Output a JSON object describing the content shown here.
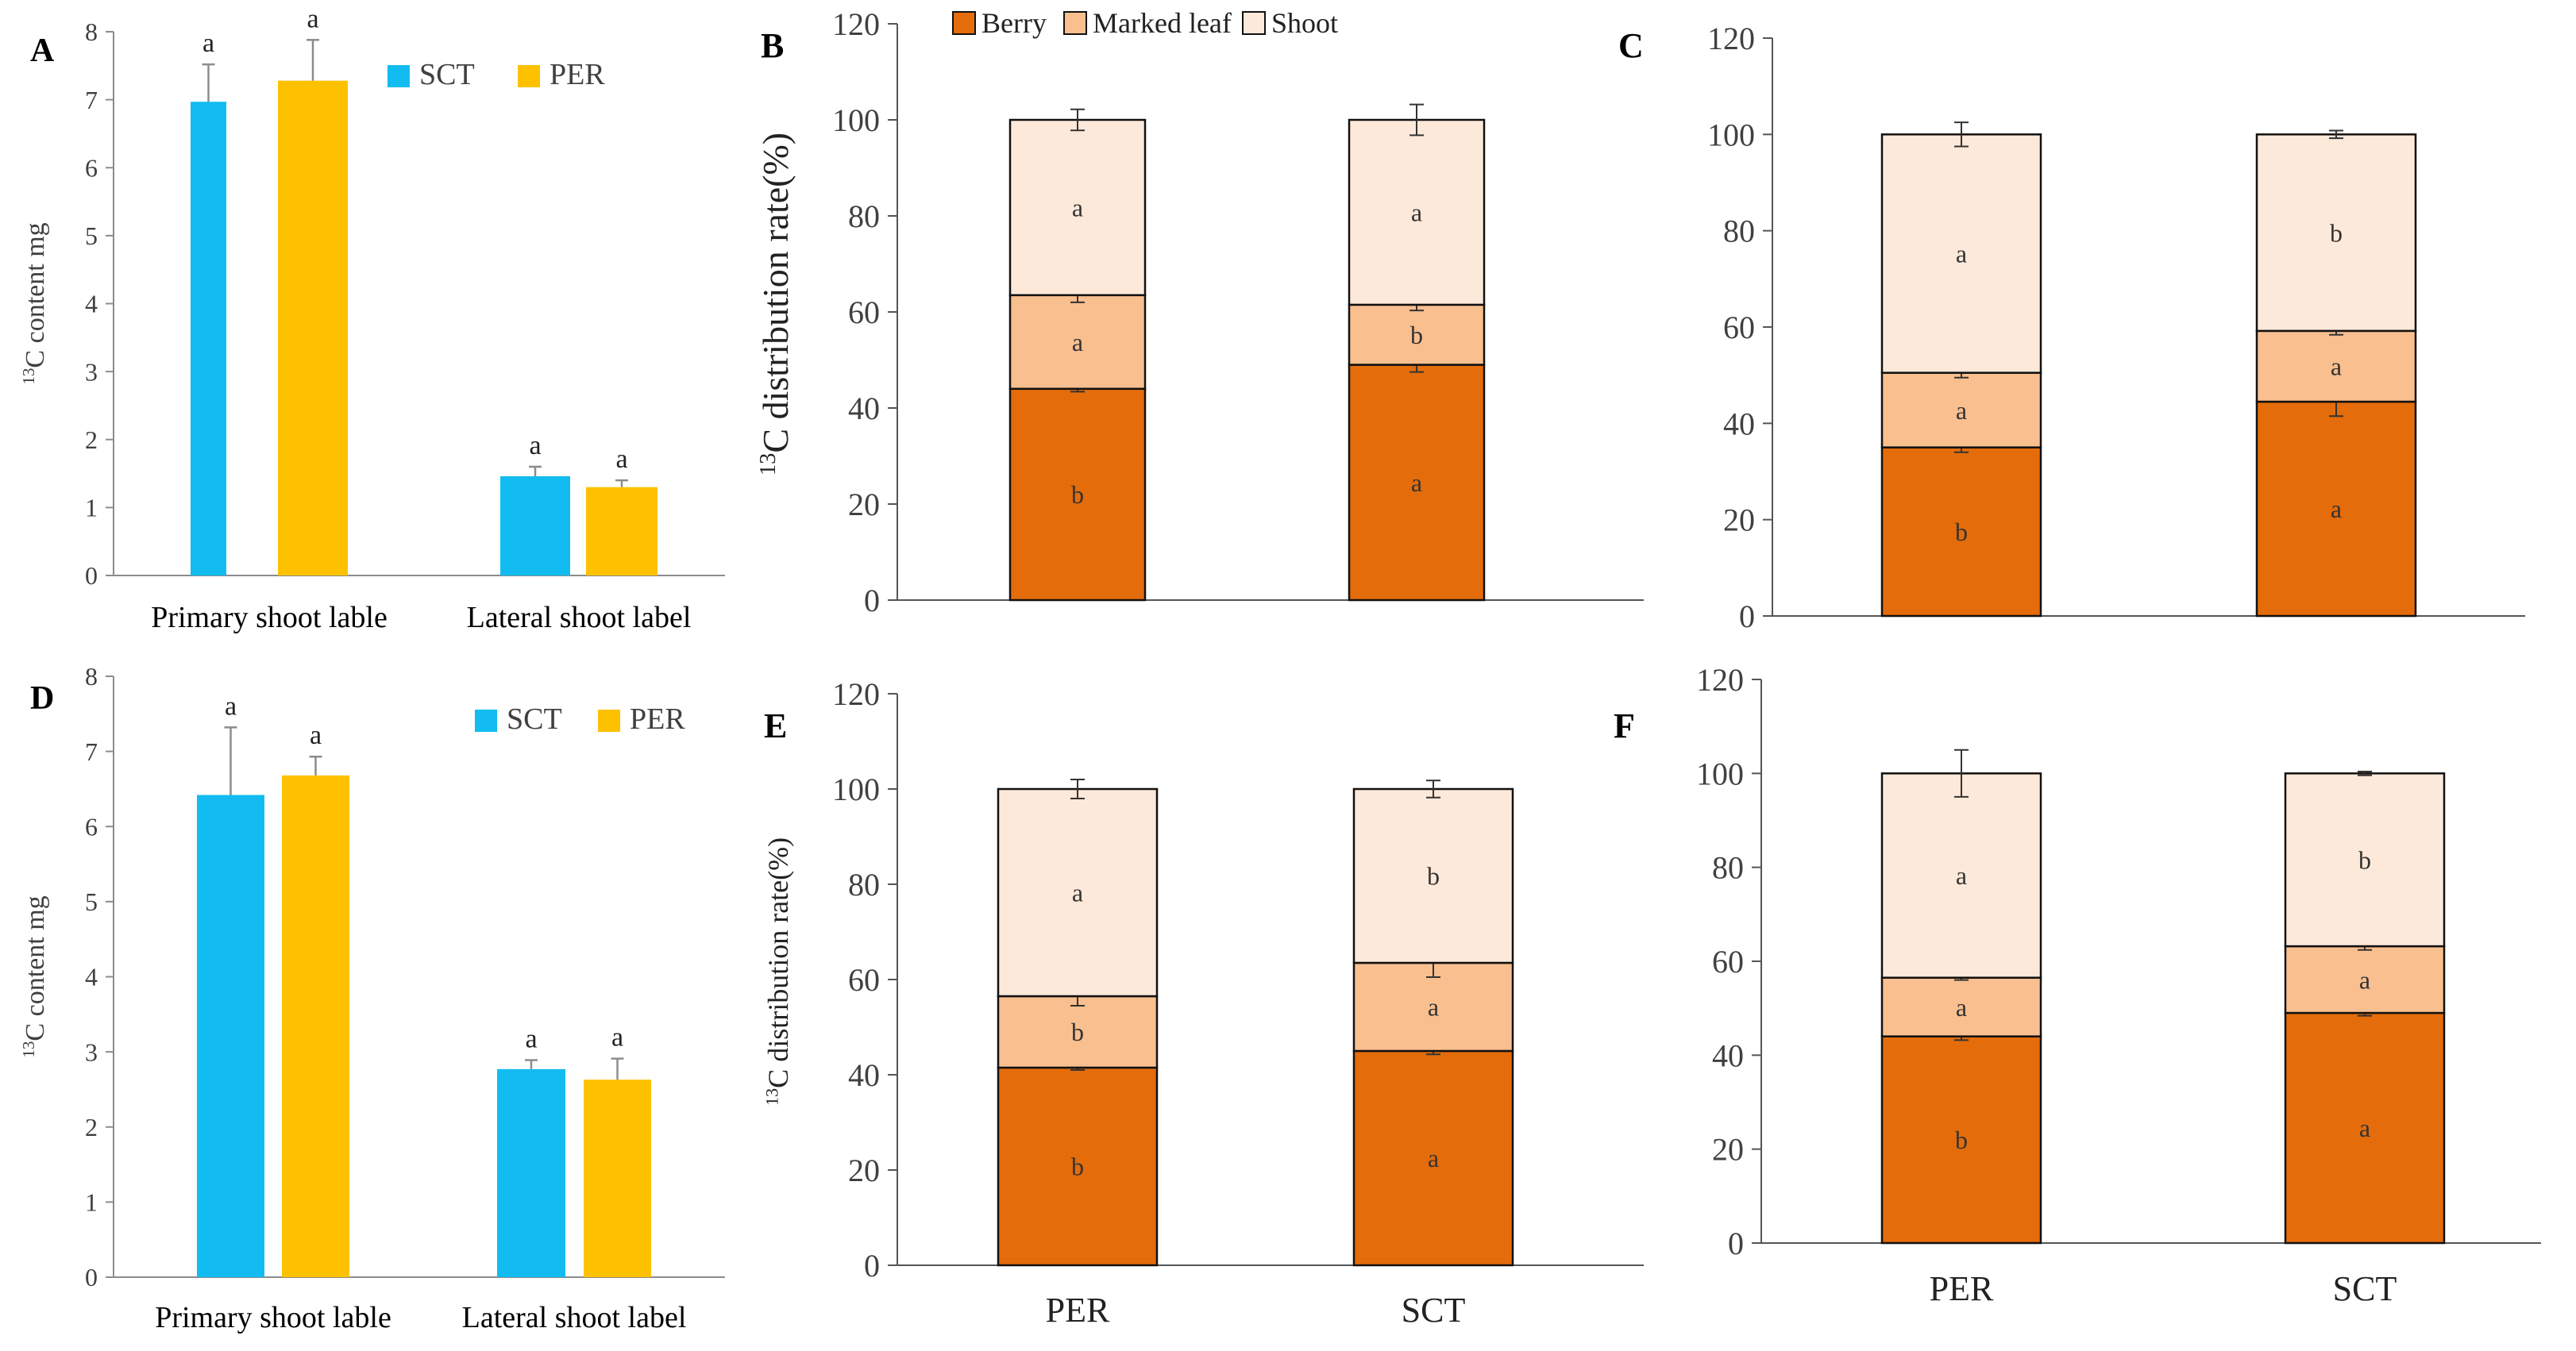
{
  "chart_data": [
    {
      "id": "A",
      "panel_label": "A",
      "type": "bar",
      "ylabel_sup": "13",
      "ylabel_rest": "C content mg",
      "ylim": [
        0,
        8
      ],
      "yticks": [
        "0",
        "1",
        "2",
        "3",
        "4",
        "5",
        "6",
        "7",
        "8"
      ],
      "categories": [
        "Primary shoot lable",
        "Lateral shoot label"
      ],
      "legend": [
        "SCT",
        "PER"
      ],
      "series": [
        {
          "name": "SCT",
          "color": "#12BCF0",
          "values": [
            6.97,
            1.46
          ],
          "errors": [
            0.55,
            0.14
          ],
          "letters": [
            "a",
            "a"
          ]
        },
        {
          "name": "PER",
          "color": "#FDC100",
          "values": [
            7.28,
            1.3
          ],
          "errors": [
            0.6,
            0.1
          ],
          "letters": [
            "a",
            "a"
          ]
        }
      ]
    },
    {
      "id": "B",
      "panel_label": "B",
      "type": "stacked-bar",
      "ylabel_sup": "13",
      "ylabel_rest": "C distribution rate(%)",
      "ylim": [
        0,
        120
      ],
      "yticks": [
        "0",
        "20",
        "40",
        "60",
        "80",
        "100",
        "120"
      ],
      "categories": [
        "PER",
        "SCT"
      ],
      "legend": [
        "Berry",
        "Marked leaf",
        "Shoot"
      ],
      "colors": [
        "#E46C0A",
        "#F9BF8F",
        "#FDE9D9"
      ],
      "series": [
        {
          "name": "Berry",
          "values": [
            44,
            49
          ],
          "errors": [
            0.6,
            1.5
          ],
          "letters": [
            "b",
            "a"
          ]
        },
        {
          "name": "Marked leaf",
          "values": [
            19.5,
            12.5
          ],
          "errors": [
            1.5,
            1.2
          ],
          "letters": [
            "a",
            "b"
          ]
        },
        {
          "name": "Shoot",
          "values": [
            36.5,
            38.5
          ],
          "errors": [
            2.2,
            3.2
          ],
          "letters": [
            "a",
            "a"
          ]
        }
      ]
    },
    {
      "id": "C",
      "panel_label": "C",
      "type": "stacked-bar",
      "ylim": [
        0,
        120
      ],
      "yticks": [
        "0",
        "20",
        "40",
        "60",
        "80",
        "100",
        "120"
      ],
      "categories": [
        "PER",
        "SCT"
      ],
      "colors": [
        "#E46C0A",
        "#F9BF8F",
        "#FDE9D9"
      ],
      "series": [
        {
          "name": "Berry",
          "values": [
            35,
            44.5
          ],
          "errors": [
            1.0,
            3.0
          ],
          "letters": [
            "b",
            "a"
          ]
        },
        {
          "name": "Marked leaf",
          "values": [
            15.5,
            14.7
          ],
          "errors": [
            1.0,
            0.8
          ],
          "letters": [
            "a",
            "a"
          ]
        },
        {
          "name": "Shoot",
          "values": [
            49.5,
            40.8
          ],
          "errors": [
            2.5,
            0.8
          ],
          "letters": [
            "a",
            "b"
          ]
        }
      ]
    },
    {
      "id": "D",
      "panel_label": "D",
      "type": "bar",
      "ylabel_sup": "13",
      "ylabel_rest": "C content mg",
      "ylim": [
        0,
        8
      ],
      "yticks": [
        "0",
        "1",
        "2",
        "3",
        "4",
        "5",
        "6",
        "7",
        "8"
      ],
      "categories": [
        "Primary shoot lable",
        "Lateral shoot label"
      ],
      "legend": [
        "SCT",
        "PER"
      ],
      "series": [
        {
          "name": "SCT",
          "color": "#12BCF0",
          "values": [
            6.42,
            2.77
          ],
          "errors": [
            0.9,
            0.12
          ],
          "letters": [
            "a",
            "a"
          ]
        },
        {
          "name": "PER",
          "color": "#FDC100",
          "values": [
            6.68,
            2.63
          ],
          "errors": [
            0.25,
            0.28
          ],
          "letters": [
            "a",
            "a"
          ]
        }
      ]
    },
    {
      "id": "E",
      "panel_label": "E",
      "type": "stacked-bar",
      "ylabel_sup": "13",
      "ylabel_rest": "C distribution rate(%)",
      "ylim": [
        0,
        120
      ],
      "yticks": [
        "0",
        "20",
        "40",
        "60",
        "80",
        "100",
        "120"
      ],
      "categories": [
        "PER",
        "SCT"
      ],
      "colors": [
        "#E46C0A",
        "#F9BF8F",
        "#FDE9D9"
      ],
      "series": [
        {
          "name": "Berry",
          "values": [
            41.5,
            45
          ],
          "errors": [
            0.5,
            0.7
          ],
          "letters": [
            "b",
            "a"
          ]
        },
        {
          "name": "Marked leaf",
          "values": [
            15,
            18.5
          ],
          "errors": [
            2.0,
            3.0
          ],
          "letters": [
            "b",
            "a"
          ]
        },
        {
          "name": "Shoot",
          "values": [
            43.5,
            36.5
          ],
          "errors": [
            2.0,
            1.8
          ],
          "letters": [
            "a",
            "b"
          ]
        }
      ]
    },
    {
      "id": "F",
      "panel_label": "F",
      "type": "stacked-bar",
      "ylim": [
        0,
        120
      ],
      "yticks": [
        "0",
        "20",
        "40",
        "60",
        "80",
        "100",
        "120"
      ],
      "categories": [
        "PER",
        "SCT"
      ],
      "colors": [
        "#E46C0A",
        "#F9BF8F",
        "#FDE9D9"
      ],
      "series": [
        {
          "name": "Berry",
          "values": [
            44,
            49
          ],
          "errors": [
            0.8,
            0.6
          ],
          "letters": [
            "b",
            "a"
          ]
        },
        {
          "name": "Marked leaf",
          "values": [
            12.5,
            14.2
          ],
          "errors": [
            0.5,
            0.8
          ],
          "letters": [
            "a",
            "a"
          ]
        },
        {
          "name": "Shoot",
          "values": [
            43.5,
            36.8
          ],
          "errors": [
            5.0,
            0.4
          ],
          "letters": [
            "a",
            "b"
          ]
        }
      ]
    }
  ],
  "shared_xlabels": [
    "PER",
    "SCT"
  ]
}
